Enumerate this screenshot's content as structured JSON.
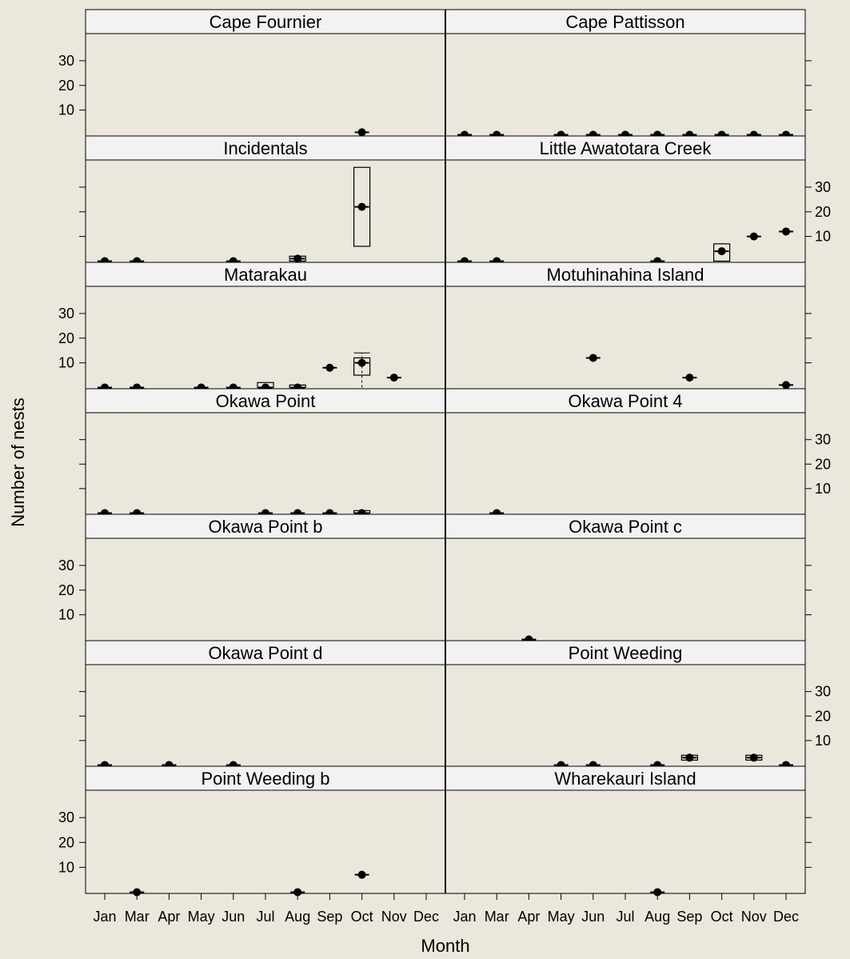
{
  "chart_data": {
    "type": "box",
    "xlabel": "Month",
    "ylabel": "Number of nests",
    "ylim": [
      -0.5,
      41
    ],
    "yticks": [
      10,
      20,
      30
    ],
    "months": [
      "Jan",
      "Mar",
      "Apr",
      "May",
      "Jun",
      "Jul",
      "Aug",
      "Sep",
      "Oct",
      "Nov",
      "Dec"
    ],
    "colors": {
      "background": "#ebe7dd",
      "strip": "#f2f2f2",
      "ink": "#000000"
    },
    "panels": [
      {
        "name": "Cape Fournier",
        "boxes": [
          {
            "month": "Oct",
            "median": 1
          }
        ]
      },
      {
        "name": "Cape Pattisson",
        "boxes": [
          {
            "month": "Jan",
            "median": 0
          },
          {
            "month": "Mar",
            "median": 0
          },
          {
            "month": "May",
            "median": 0
          },
          {
            "month": "Jun",
            "median": 0
          },
          {
            "month": "Jul",
            "median": 0
          },
          {
            "month": "Aug",
            "median": 0
          },
          {
            "month": "Sep",
            "median": 0
          },
          {
            "month": "Oct",
            "median": 0
          },
          {
            "month": "Nov",
            "median": 0
          },
          {
            "month": "Dec",
            "median": 0
          }
        ]
      },
      {
        "name": "Incidentals",
        "boxes": [
          {
            "month": "Jan",
            "median": 0
          },
          {
            "month": "Mar",
            "median": 0
          },
          {
            "month": "Jun",
            "median": 0
          },
          {
            "month": "Aug",
            "median": 1,
            "q1": 0,
            "q3": 2
          },
          {
            "month": "Oct",
            "median": 22,
            "q1": 6,
            "q3": 38
          }
        ]
      },
      {
        "name": "Little Awatotara Creek",
        "boxes": [
          {
            "month": "Jan",
            "median": 0
          },
          {
            "month": "Mar",
            "median": 0
          },
          {
            "month": "Aug",
            "median": 0
          },
          {
            "month": "Oct",
            "median": 4,
            "q1": 0,
            "q3": 7
          },
          {
            "month": "Nov",
            "median": 10
          },
          {
            "month": "Dec",
            "median": 12
          }
        ]
      },
      {
        "name": "Matarakau",
        "boxes": [
          {
            "month": "Jan",
            "median": 0
          },
          {
            "month": "Mar",
            "median": 0
          },
          {
            "month": "May",
            "median": 0
          },
          {
            "month": "Jun",
            "median": 0
          },
          {
            "month": "Jul",
            "median": 0,
            "q1": 0,
            "q3": 2
          },
          {
            "month": "Aug",
            "median": 0,
            "q1": 0,
            "q3": 1
          },
          {
            "month": "Sep",
            "median": 8
          },
          {
            "month": "Oct",
            "median": 10,
            "q1": 5,
            "q3": 12,
            "lo": 0,
            "hi": 14
          },
          {
            "month": "Nov",
            "median": 4
          }
        ]
      },
      {
        "name": "Motuhinahina Island",
        "boxes": [
          {
            "month": "Jun",
            "median": 12
          },
          {
            "month": "Sep",
            "median": 4
          },
          {
            "month": "Dec",
            "median": 1
          }
        ]
      },
      {
        "name": "Okawa Point",
        "boxes": [
          {
            "month": "Jan",
            "median": 0
          },
          {
            "month": "Mar",
            "median": 0
          },
          {
            "month": "Jul",
            "median": 0
          },
          {
            "month": "Aug",
            "median": 0
          },
          {
            "month": "Sep",
            "median": 0
          },
          {
            "month": "Oct",
            "median": 0,
            "q1": 0,
            "q3": 1
          }
        ]
      },
      {
        "name": "Okawa Point 4",
        "boxes": [
          {
            "month": "Mar",
            "median": 0
          }
        ]
      },
      {
        "name": "Okawa Point b",
        "boxes": []
      },
      {
        "name": "Okawa Point c",
        "boxes": [
          {
            "month": "Apr",
            "median": 0
          }
        ]
      },
      {
        "name": "Okawa Point d",
        "boxes": [
          {
            "month": "Jan",
            "median": 0
          },
          {
            "month": "Apr",
            "median": 0
          },
          {
            "month": "Jun",
            "median": 0
          }
        ]
      },
      {
        "name": "Point Weeding",
        "boxes": [
          {
            "month": "May",
            "median": 0
          },
          {
            "month": "Jun",
            "median": 0
          },
          {
            "month": "Aug",
            "median": 0
          },
          {
            "month": "Sep",
            "median": 3,
            "q1": 2,
            "q3": 4
          },
          {
            "month": "Nov",
            "median": 3,
            "q1": 2,
            "q3": 4
          },
          {
            "month": "Dec",
            "median": 0
          }
        ]
      },
      {
        "name": "Point Weeding b",
        "boxes": [
          {
            "month": "Mar",
            "median": 0
          },
          {
            "month": "Aug",
            "median": 0
          },
          {
            "month": "Oct",
            "median": 7
          }
        ]
      },
      {
        "name": "Wharekauri Island",
        "boxes": [
          {
            "month": "Aug",
            "median": 0
          }
        ]
      }
    ]
  }
}
